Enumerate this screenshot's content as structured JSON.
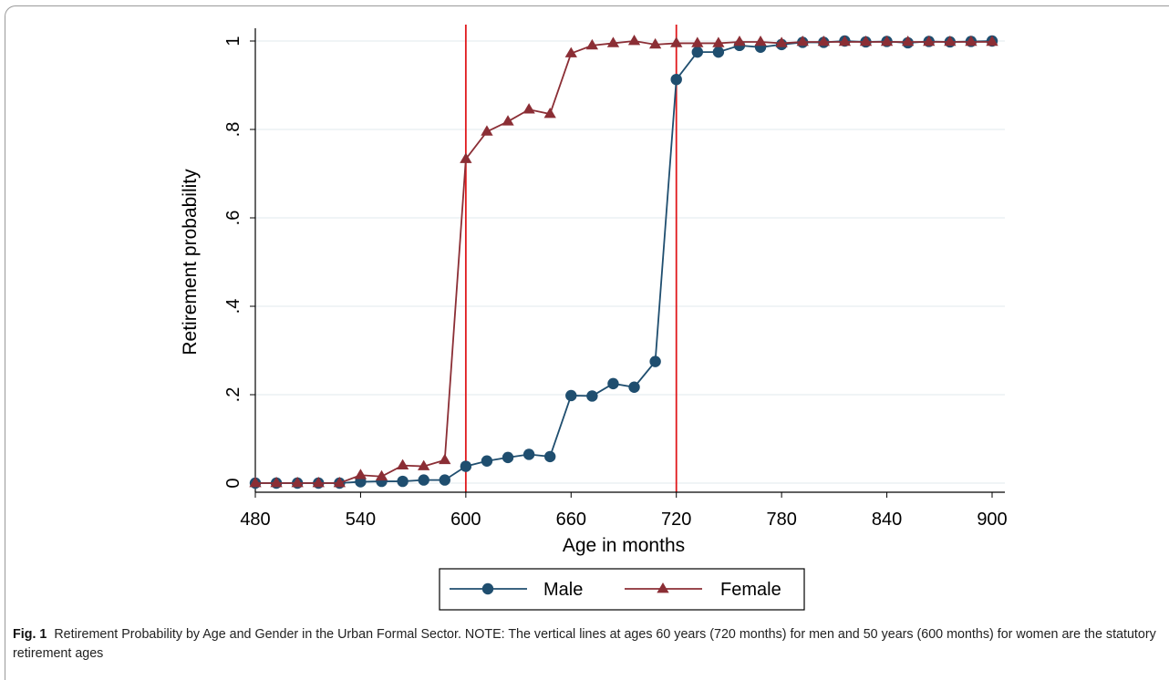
{
  "colors": {
    "male": "#1f4e6f",
    "female": "#8b2e35",
    "reference_lines": "#e0191c",
    "grid": "#e2e8ed"
  },
  "chart_data": {
    "type": "line",
    "title": "",
    "xlabel": "Age in months",
    "ylabel": "Retirement probability",
    "xlim": [
      480,
      900
    ],
    "ylim": [
      0,
      1
    ],
    "x_ticks": [
      "480",
      "540",
      "600",
      "660",
      "720",
      "780",
      "840",
      "900"
    ],
    "y_ticks": [
      "0",
      ".2",
      ".4",
      ".6",
      ".8",
      "1"
    ],
    "grid": "horizontal",
    "reference_lines_x": [
      600,
      720
    ],
    "legend_position": "bottom",
    "x": [
      480,
      492,
      504,
      516,
      528,
      540,
      552,
      564,
      576,
      588,
      600,
      612,
      624,
      636,
      648,
      660,
      672,
      684,
      696,
      708,
      720,
      732,
      744,
      756,
      768,
      780,
      792,
      804,
      816,
      828,
      840,
      852,
      864,
      876,
      888,
      900
    ],
    "series": [
      {
        "name": "Male",
        "marker": "circle",
        "values": [
          0.0,
          0.0,
          0.0,
          0.0,
          0.0,
          0.003,
          0.004,
          0.004,
          0.007,
          0.007,
          0.038,
          0.05,
          0.058,
          0.065,
          0.06,
          0.198,
          0.197,
          0.225,
          0.217,
          0.275,
          0.913,
          0.975,
          0.975,
          0.99,
          0.986,
          0.992,
          0.997,
          0.997,
          1.0,
          0.998,
          0.999,
          0.996,
          0.999,
          0.998,
          0.999,
          1.0
        ]
      },
      {
        "name": "Female",
        "marker": "triangle",
        "values": [
          0.0,
          0.0,
          0.0,
          0.0,
          0.0,
          0.018,
          0.015,
          0.04,
          0.038,
          0.052,
          0.733,
          0.795,
          0.818,
          0.845,
          0.835,
          0.972,
          0.99,
          0.995,
          1.0,
          0.992,
          0.995,
          0.995,
          0.995,
          0.998,
          0.998,
          0.995,
          0.998,
          0.998,
          0.998,
          0.998,
          0.998,
          0.998,
          0.998,
          0.998,
          0.998,
          0.998
        ]
      }
    ]
  },
  "caption": {
    "label": "Fig. 1",
    "text": "Retirement Probability by Age and Gender in the Urban Formal Sector. NOTE: The vertical lines at ages 60 years (720 months) for men and 50 years (600 months) for women are the statutory retirement ages"
  }
}
